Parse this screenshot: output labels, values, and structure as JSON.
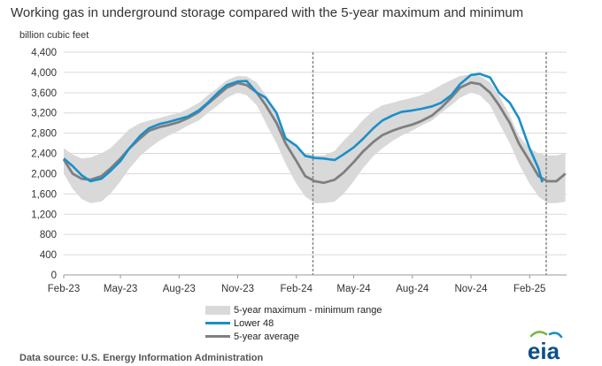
{
  "chart_data": {
    "type": "area",
    "title": "Working gas in underground  storage compared with the 5-year maximum and minimum",
    "ylabel": "billion cubic feet",
    "xlabel": "",
    "ylim": [
      0,
      4400
    ],
    "yticks": [
      0,
      400,
      800,
      1200,
      1600,
      2000,
      2400,
      2800,
      3200,
      3600,
      4000,
      4400
    ],
    "ytick_labels": [
      "0",
      "400",
      "800",
      "1,200",
      "1,600",
      "2,000",
      "2,400",
      "2,800",
      "3,200",
      "3,600",
      "4,000",
      "4,400"
    ],
    "x_range": [
      "2023-02-01",
      "2025-03-31"
    ],
    "xticks": [
      "2023-02-01",
      "2023-05-01",
      "2023-08-01",
      "2023-11-01",
      "2024-02-01",
      "2024-05-01",
      "2024-08-01",
      "2024-11-01",
      "2025-02-01"
    ],
    "xtick_labels": [
      "Feb-23",
      "May-23",
      "Aug-23",
      "Nov-23",
      "Feb-24",
      "May-24",
      "Aug-24",
      "Nov-24",
      "Feb-25"
    ],
    "grid": true,
    "legend_position": "bottom",
    "vertical_markers": [
      "2024-02-27",
      "2025-02-27"
    ],
    "colors": {
      "range": "#d9d9d9",
      "lower48": "#1a8fc9",
      "average": "#7f7f7f",
      "grid": "#d9d9d9",
      "marker": "#808080"
    },
    "range_series": {
      "name": "5-year maximum - minimum range",
      "x": [
        "2023-02-01",
        "2023-02-15",
        "2023-03-01",
        "2023-03-15",
        "2023-04-01",
        "2023-04-15",
        "2023-05-01",
        "2023-05-15",
        "2023-06-01",
        "2023-06-15",
        "2023-07-01",
        "2023-07-15",
        "2023-08-01",
        "2023-08-15",
        "2023-09-01",
        "2023-09-15",
        "2023-10-01",
        "2023-10-15",
        "2023-11-01",
        "2023-11-15",
        "2023-12-01",
        "2023-12-15",
        "2024-01-01",
        "2024-01-15",
        "2024-02-01",
        "2024-02-15",
        "2024-03-01",
        "2024-03-15",
        "2024-04-01",
        "2024-04-15",
        "2024-05-01",
        "2024-05-15",
        "2024-06-01",
        "2024-06-15",
        "2024-07-01",
        "2024-07-15",
        "2024-08-01",
        "2024-08-15",
        "2024-09-01",
        "2024-09-15",
        "2024-10-01",
        "2024-10-15",
        "2024-11-01",
        "2024-11-15",
        "2024-12-01",
        "2024-12-15",
        "2025-01-01",
        "2025-01-15",
        "2025-02-01",
        "2025-02-15",
        "2025-03-01",
        "2025-03-15",
        "2025-03-29"
      ],
      "min": [
        2000,
        1700,
        1500,
        1420,
        1450,
        1600,
        1850,
        2100,
        2350,
        2500,
        2650,
        2750,
        2850,
        2950,
        3050,
        3200,
        3350,
        3500,
        3600,
        3550,
        3350,
        3000,
        2600,
        2200,
        1800,
        1550,
        1420,
        1420,
        1450,
        1600,
        1850,
        2100,
        2350,
        2500,
        2650,
        2750,
        2850,
        2950,
        3050,
        3200,
        3350,
        3500,
        3600,
        3550,
        3350,
        3000,
        2600,
        2200,
        1800,
        1550,
        1420,
        1420,
        1450
      ],
      "max": [
        2500,
        2380,
        2300,
        2320,
        2400,
        2500,
        2700,
        2880,
        3000,
        3050,
        3100,
        3150,
        3200,
        3280,
        3400,
        3550,
        3700,
        3850,
        3930,
        3920,
        3800,
        3550,
        3150,
        2750,
        2500,
        2400,
        2360,
        2360,
        2450,
        2650,
        2850,
        3050,
        3250,
        3350,
        3400,
        3450,
        3500,
        3550,
        3650,
        3750,
        3850,
        3930,
        3960,
        3930,
        3800,
        3550,
        3150,
        2750,
        2500,
        2400,
        2360,
        2360,
        2400
      ]
    },
    "series": [
      {
        "name": "Lower 48",
        "x": [
          "2023-02-01",
          "2023-02-15",
          "2023-03-01",
          "2023-03-15",
          "2023-04-01",
          "2023-04-15",
          "2023-05-01",
          "2023-05-15",
          "2023-06-01",
          "2023-06-15",
          "2023-07-01",
          "2023-07-15",
          "2023-08-01",
          "2023-08-15",
          "2023-09-01",
          "2023-09-15",
          "2023-10-01",
          "2023-10-15",
          "2023-11-01",
          "2023-11-15",
          "2023-12-01",
          "2023-12-15",
          "2024-01-01",
          "2024-01-15",
          "2024-02-01",
          "2024-02-15",
          "2024-03-01",
          "2024-03-15",
          "2024-04-01",
          "2024-04-15",
          "2024-05-01",
          "2024-05-15",
          "2024-06-01",
          "2024-06-15",
          "2024-07-01",
          "2024-07-15",
          "2024-08-01",
          "2024-08-15",
          "2024-09-01",
          "2024-09-15",
          "2024-10-01",
          "2024-10-15",
          "2024-11-01",
          "2024-11-15",
          "2024-12-01",
          "2024-12-15",
          "2025-01-01",
          "2025-01-15",
          "2025-02-01",
          "2025-02-15",
          "2025-02-21"
        ],
        "values": [
          2300,
          2150,
          1970,
          1850,
          1900,
          2050,
          2250,
          2500,
          2750,
          2900,
          2980,
          3020,
          3080,
          3130,
          3250,
          3400,
          3600,
          3750,
          3820,
          3830,
          3600,
          3500,
          3200,
          2700,
          2550,
          2350,
          2310,
          2300,
          2270,
          2380,
          2520,
          2680,
          2900,
          3050,
          3150,
          3220,
          3250,
          3280,
          3330,
          3400,
          3550,
          3770,
          3950,
          3970,
          3900,
          3600,
          3400,
          3100,
          2500,
          2100,
          1830
        ]
      },
      {
        "name": "5-year average",
        "x": [
          "2023-02-01",
          "2023-02-15",
          "2023-03-01",
          "2023-03-15",
          "2023-04-01",
          "2023-04-15",
          "2023-05-01",
          "2023-05-15",
          "2023-06-01",
          "2023-06-15",
          "2023-07-01",
          "2023-07-15",
          "2023-08-01",
          "2023-08-15",
          "2023-09-01",
          "2023-09-15",
          "2023-10-01",
          "2023-10-15",
          "2023-11-01",
          "2023-11-15",
          "2023-12-01",
          "2023-12-15",
          "2024-01-01",
          "2024-01-15",
          "2024-02-01",
          "2024-02-15",
          "2024-03-01",
          "2024-03-15",
          "2024-04-01",
          "2024-04-15",
          "2024-05-01",
          "2024-05-15",
          "2024-06-01",
          "2024-06-15",
          "2024-07-01",
          "2024-07-15",
          "2024-08-01",
          "2024-08-15",
          "2024-09-01",
          "2024-09-15",
          "2024-10-01",
          "2024-10-15",
          "2024-11-01",
          "2024-11-15",
          "2024-12-01",
          "2024-12-15",
          "2025-01-01",
          "2025-01-15",
          "2025-02-01",
          "2025-02-15",
          "2025-03-01",
          "2025-03-15",
          "2025-03-29"
        ],
        "values": [
          2280,
          2000,
          1900,
          1880,
          1950,
          2100,
          2300,
          2500,
          2700,
          2850,
          2920,
          2960,
          3020,
          3100,
          3220,
          3380,
          3550,
          3700,
          3790,
          3750,
          3600,
          3350,
          3000,
          2600,
          2250,
          1950,
          1850,
          1820,
          1880,
          2020,
          2230,
          2430,
          2630,
          2760,
          2850,
          2910,
          2970,
          3040,
          3150,
          3300,
          3500,
          3700,
          3800,
          3770,
          3600,
          3350,
          3000,
          2600,
          2250,
          1950,
          1850,
          1850,
          2000
        ]
      }
    ]
  },
  "legend": {
    "range": "5-year maximum - minimum range",
    "lower48": "Lower 48",
    "average": "5-year average"
  },
  "source": "Data source:  U.S. Energy Information Administration",
  "logo": {
    "text": "eia",
    "icon": "eia-logo"
  }
}
